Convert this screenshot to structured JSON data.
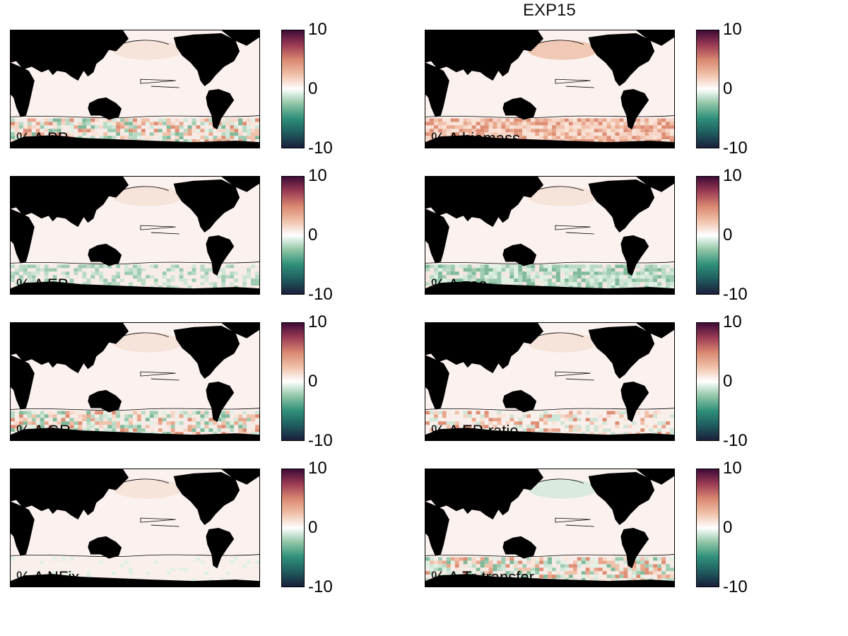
{
  "title": "EXP15",
  "chart_data": {
    "type": "heatmap",
    "title": "EXP15",
    "colorbar": {
      "min": -10,
      "max": 10,
      "ticks": [
        "10",
        "0",
        "-10"
      ],
      "colors": [
        "#1b1f3b",
        "#1f5b5e",
        "#2f8f7a",
        "#8fc5a5",
        "#ffffff",
        "#f0c0a8",
        "#d98770",
        "#9c3b55",
        "#3d0b37"
      ]
    },
    "panels": [
      {
        "label": "% Δ PP",
        "southern_ocean": "mixed"
      },
      {
        "label": "% Δ biomass",
        "southern_ocean": "increase"
      },
      {
        "label": "% Δ EP",
        "southern_ocean": "slight-decrease"
      },
      {
        "label": "% Δ zoo",
        "southern_ocean": "decrease"
      },
      {
        "label": "% Δ GR",
        "southern_ocean": "mixed"
      },
      {
        "label": "% Δ EP-ratio",
        "southern_ocean": "slight-mixed"
      },
      {
        "label": "% Δ NFix",
        "southern_ocean": "neutral"
      },
      {
        "label": "% Δ Tr-transfer",
        "southern_ocean": "mixed"
      }
    ]
  }
}
